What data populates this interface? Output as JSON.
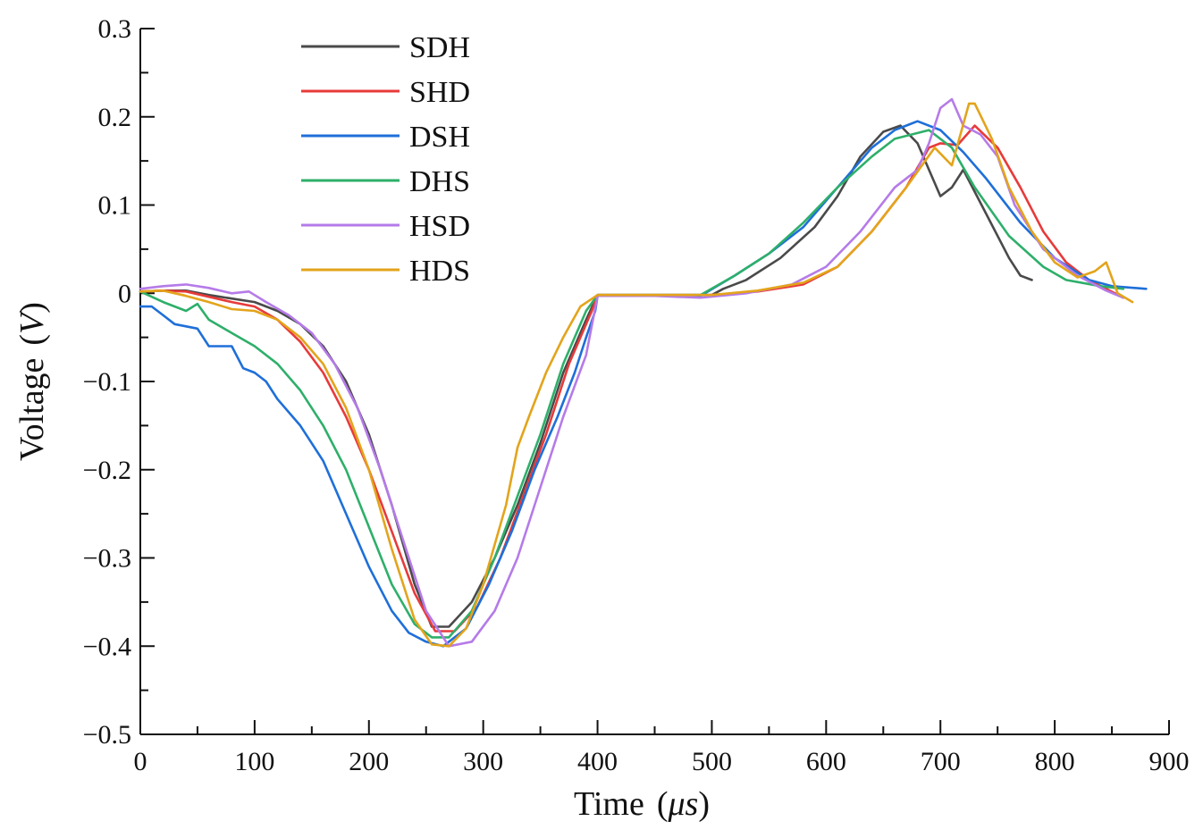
{
  "chart_data": {
    "type": "line",
    "title": "",
    "xlabel": "Time",
    "xlabel_unit": "μs",
    "ylabel": "Voltage",
    "ylabel_unit": "V",
    "xlim": [
      0,
      900
    ],
    "ylim": [
      -0.5,
      0.3
    ],
    "x_ticks": [
      0,
      100,
      200,
      300,
      400,
      500,
      600,
      700,
      800,
      900
    ],
    "x_tick_labels": [
      "0",
      "100",
      "200",
      "300",
      "400",
      "500",
      "600",
      "700",
      "800",
      "900"
    ],
    "y_ticks": [
      -0.5,
      -0.4,
      -0.3,
      -0.2,
      -0.1,
      0,
      0.1,
      0.2,
      0.3
    ],
    "y_tick_labels": [
      "−0.5",
      "−0.4",
      "−0.3",
      "−0.2",
      "−0.1",
      "0",
      "0.1",
      "0.2",
      "0.3"
    ],
    "legend_position": "top-left",
    "grid": false,
    "series": [
      {
        "name": "SDH",
        "color": "#4a4a4a",
        "x": [
          0,
          20,
          40,
          60,
          80,
          100,
          120,
          140,
          160,
          180,
          200,
          220,
          240,
          255,
          270,
          290,
          310,
          330,
          350,
          370,
          390,
          400,
          450,
          500,
          510,
          530,
          560,
          590,
          610,
          630,
          650,
          665,
          680,
          690,
          700,
          710,
          720,
          740,
          760,
          770,
          780
        ],
        "y": [
          0.002,
          0.003,
          0.003,
          -0.002,
          -0.006,
          -0.01,
          -0.02,
          -0.035,
          -0.06,
          -0.1,
          -0.16,
          -0.24,
          -0.33,
          -0.378,
          -0.378,
          -0.35,
          -0.3,
          -0.24,
          -0.17,
          -0.09,
          -0.03,
          -0.002,
          -0.002,
          -0.002,
          0.005,
          0.015,
          0.04,
          0.075,
          0.11,
          0.155,
          0.183,
          0.19,
          0.17,
          0.14,
          0.11,
          0.12,
          0.14,
          0.09,
          0.04,
          0.02,
          0.015
        ]
      },
      {
        "name": "SHD",
        "color": "#e83a3a",
        "x": [
          0,
          20,
          40,
          60,
          80,
          100,
          120,
          140,
          160,
          180,
          200,
          220,
          240,
          258,
          275,
          295,
          315,
          335,
          355,
          375,
          395,
          400,
          450,
          500,
          540,
          580,
          610,
          640,
          670,
          690,
          700,
          715,
          730,
          750,
          770,
          790,
          810,
          830,
          845,
          860
        ],
        "y": [
          0.002,
          0.003,
          0.002,
          -0.004,
          -0.01,
          -0.015,
          -0.03,
          -0.055,
          -0.09,
          -0.14,
          -0.2,
          -0.27,
          -0.34,
          -0.383,
          -0.383,
          -0.355,
          -0.3,
          -0.23,
          -0.16,
          -0.08,
          -0.02,
          -0.002,
          -0.002,
          -0.002,
          0.002,
          0.01,
          0.03,
          0.07,
          0.12,
          0.165,
          0.17,
          0.168,
          0.19,
          0.165,
          0.12,
          0.07,
          0.035,
          0.015,
          0.005,
          -0.005
        ]
      },
      {
        "name": "DSH",
        "color": "#1e6fd9",
        "x": [
          0,
          10,
          20,
          30,
          50,
          60,
          80,
          90,
          100,
          110,
          120,
          140,
          160,
          180,
          200,
          220,
          235,
          250,
          265,
          285,
          305,
          325,
          345,
          365,
          380,
          390,
          398,
          400,
          450,
          490,
          520,
          550,
          580,
          610,
          640,
          660,
          680,
          700,
          720,
          740,
          770,
          800,
          830,
          850,
          880
        ],
        "y": [
          -0.015,
          -0.015,
          -0.025,
          -0.035,
          -0.04,
          -0.06,
          -0.06,
          -0.085,
          -0.09,
          -0.1,
          -0.12,
          -0.15,
          -0.19,
          -0.25,
          -0.31,
          -0.36,
          -0.385,
          -0.395,
          -0.4,
          -0.38,
          -0.33,
          -0.27,
          -0.2,
          -0.14,
          -0.09,
          -0.05,
          -0.02,
          -0.003,
          -0.003,
          -0.003,
          0.02,
          0.045,
          0.075,
          0.12,
          0.165,
          0.185,
          0.195,
          0.185,
          0.16,
          0.13,
          0.08,
          0.04,
          0.015,
          0.008,
          0.005
        ]
      },
      {
        "name": "DHS",
        "color": "#2eaf6a",
        "x": [
          0,
          20,
          40,
          50,
          60,
          80,
          100,
          120,
          140,
          160,
          180,
          200,
          220,
          240,
          255,
          270,
          290,
          310,
          330,
          350,
          370,
          390,
          400,
          450,
          490,
          520,
          550,
          580,
          610,
          640,
          660,
          690,
          710,
          730,
          760,
          790,
          810,
          840,
          860
        ],
        "y": [
          0.002,
          -0.01,
          -0.02,
          -0.012,
          -0.03,
          -0.045,
          -0.06,
          -0.08,
          -0.11,
          -0.15,
          -0.2,
          -0.265,
          -0.33,
          -0.375,
          -0.39,
          -0.39,
          -0.36,
          -0.3,
          -0.23,
          -0.16,
          -0.08,
          -0.02,
          -0.002,
          -0.002,
          -0.002,
          0.02,
          0.045,
          0.08,
          0.12,
          0.155,
          0.175,
          0.185,
          0.165,
          0.12,
          0.065,
          0.03,
          0.015,
          0.008,
          0.005
        ]
      },
      {
        "name": "HSD",
        "color": "#b57be8",
        "x": [
          0,
          20,
          40,
          60,
          80,
          95,
          110,
          130,
          150,
          170,
          190,
          210,
          230,
          250,
          270,
          290,
          310,
          330,
          350,
          370,
          390,
          400,
          450,
          490,
          530,
          570,
          600,
          630,
          660,
          680,
          690,
          700,
          710,
          720,
          735,
          750,
          765,
          790,
          820,
          845,
          860
        ],
        "y": [
          0.005,
          0.008,
          0.01,
          0.006,
          0.0,
          0.002,
          -0.01,
          -0.025,
          -0.045,
          -0.08,
          -0.13,
          -0.2,
          -0.28,
          -0.36,
          -0.4,
          -0.395,
          -0.36,
          -0.3,
          -0.22,
          -0.14,
          -0.07,
          -0.003,
          -0.003,
          -0.005,
          0.0,
          0.01,
          0.03,
          0.07,
          0.12,
          0.14,
          0.17,
          0.21,
          0.22,
          0.19,
          0.18,
          0.155,
          0.1,
          0.05,
          0.02,
          0.003,
          -0.005
        ]
      },
      {
        "name": "HDS",
        "color": "#e3a41b",
        "x": [
          0,
          20,
          40,
          60,
          80,
          100,
          120,
          140,
          160,
          180,
          200,
          220,
          240,
          255,
          270,
          285,
          300,
          320,
          330,
          340,
          355,
          370,
          385,
          400,
          450,
          500,
          540,
          580,
          610,
          640,
          670,
          695,
          710,
          725,
          730,
          745,
          760,
          780,
          800,
          820,
          835,
          845,
          855,
          868
        ],
        "y": [
          0.002,
          0.003,
          -0.003,
          -0.01,
          -0.018,
          -0.02,
          -0.03,
          -0.05,
          -0.08,
          -0.13,
          -0.2,
          -0.29,
          -0.37,
          -0.398,
          -0.4,
          -0.38,
          -0.33,
          -0.24,
          -0.175,
          -0.14,
          -0.09,
          -0.05,
          -0.015,
          -0.002,
          -0.002,
          -0.002,
          0.003,
          0.012,
          0.03,
          0.07,
          0.12,
          0.165,
          0.145,
          0.215,
          0.215,
          0.175,
          0.12,
          0.07,
          0.035,
          0.018,
          0.025,
          0.035,
          0.0,
          -0.01
        ]
      }
    ]
  }
}
